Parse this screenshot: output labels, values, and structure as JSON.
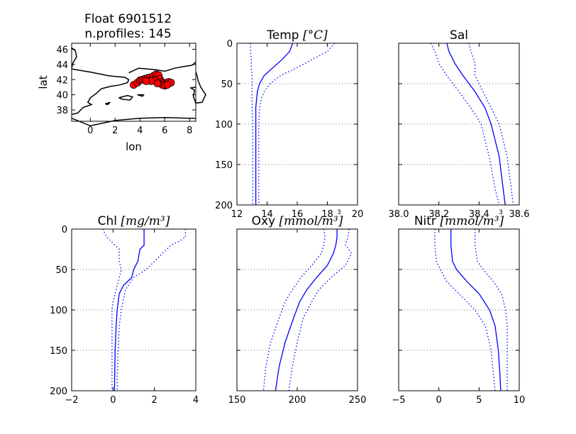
{
  "chart_data": [
    {
      "type": "scatter",
      "title_line1": "Float 6901512",
      "title_line2": "n.profiles: 145",
      "xlabel": "lon",
      "ylabel": "lat",
      "xlim": [
        -1.5,
        8.5
      ],
      "ylim": [
        36.5,
        46.8
      ],
      "xticks": [
        0,
        2,
        4,
        6,
        8
      ],
      "yticks": [
        38,
        40,
        42,
        44,
        46
      ],
      "marker_color": "#ff0000",
      "coast_color": "#000000",
      "points": [
        {
          "x": 3.5,
          "y": 41.3
        },
        {
          "x": 3.8,
          "y": 41.6
        },
        {
          "x": 4.0,
          "y": 41.9
        },
        {
          "x": 4.2,
          "y": 42.0
        },
        {
          "x": 4.4,
          "y": 42.1
        },
        {
          "x": 4.6,
          "y": 42.2
        },
        {
          "x": 4.8,
          "y": 42.3
        },
        {
          "x": 5.0,
          "y": 42.2
        },
        {
          "x": 5.1,
          "y": 42.5
        },
        {
          "x": 5.3,
          "y": 42.7
        },
        {
          "x": 5.5,
          "y": 42.6
        },
        {
          "x": 5.6,
          "y": 42.1
        },
        {
          "x": 5.2,
          "y": 41.9
        },
        {
          "x": 5.7,
          "y": 41.7
        },
        {
          "x": 5.9,
          "y": 41.6
        },
        {
          "x": 6.1,
          "y": 41.5
        },
        {
          "x": 6.3,
          "y": 41.7
        },
        {
          "x": 6.5,
          "y": 41.6
        },
        {
          "x": 5.8,
          "y": 41.3
        },
        {
          "x": 6.0,
          "y": 41.2
        },
        {
          "x": 5.4,
          "y": 41.5
        },
        {
          "x": 4.9,
          "y": 41.8
        },
        {
          "x": 4.5,
          "y": 41.8
        },
        {
          "x": 6.2,
          "y": 41.3
        }
      ]
    },
    {
      "type": "line",
      "title": "Temp",
      "title_unit": "[°C]",
      "xlim": [
        12,
        20
      ],
      "ylim": [
        200,
        0
      ],
      "xticks": [
        12,
        14,
        16,
        18,
        20
      ],
      "xticklabels": [
        "12",
        "14",
        "16",
        "18",
        "20"
      ],
      "offset_text": "3",
      "yticks": [
        0,
        50,
        100,
        150,
        200
      ],
      "show_yticklabels": true,
      "grid_y": true,
      "line_color": "#0000ff",
      "series": [
        {
          "style": "solid",
          "x": [
            15.7,
            15.5,
            15.0,
            14.4,
            13.8,
            13.5,
            13.35,
            13.3,
            13.25,
            13.25,
            13.25,
            13.25
          ],
          "y": [
            0,
            10,
            20,
            30,
            40,
            50,
            60,
            70,
            80,
            100,
            150,
            200
          ]
        },
        {
          "style": "dotted",
          "x": [
            18.5,
            18.0,
            17.0,
            16.0,
            14.9,
            14.2,
            13.8,
            13.6,
            13.5,
            13.45,
            13.45,
            13.45
          ],
          "y": [
            0,
            10,
            20,
            30,
            40,
            50,
            60,
            70,
            80,
            100,
            150,
            200
          ]
        },
        {
          "style": "dotted",
          "x": [
            12.9,
            12.9,
            12.95,
            12.95,
            13.0,
            13.0,
            13.0,
            13.0,
            13.0,
            13.05,
            13.05,
            13.05
          ],
          "y": [
            0,
            10,
            20,
            30,
            40,
            50,
            60,
            70,
            80,
            100,
            150,
            200
          ]
        }
      ]
    },
    {
      "type": "line",
      "title": "Sal",
      "title_unit": "",
      "xlim": [
        38.0,
        38.6
      ],
      "ylim": [
        200,
        0
      ],
      "xticks": [
        38.0,
        38.2,
        38.4,
        38.6
      ],
      "xticklabels": [
        "38.0",
        "38.2",
        "38.4",
        "38.6"
      ],
      "offset_text": "3",
      "yticks": [
        0,
        50,
        100,
        150,
        200
      ],
      "show_yticklabels": false,
      "grid_y": true,
      "line_color": "#0000ff",
      "series": [
        {
          "style": "solid",
          "x": [
            38.24,
            38.25,
            38.28,
            38.32,
            38.38,
            38.43,
            38.46,
            38.5,
            38.52,
            38.53
          ],
          "y": [
            0,
            10,
            25,
            40,
            60,
            80,
            100,
            140,
            180,
            200
          ]
        },
        {
          "style": "dotted",
          "x": [
            38.16,
            38.18,
            38.2,
            38.24,
            38.3,
            38.36,
            38.41,
            38.45,
            38.48,
            38.5
          ],
          "y": [
            0,
            10,
            25,
            40,
            60,
            80,
            100,
            140,
            180,
            200
          ]
        },
        {
          "style": "dotted",
          "x": [
            38.35,
            38.36,
            38.38,
            38.38,
            38.42,
            38.46,
            38.5,
            38.54,
            38.56,
            38.57
          ],
          "y": [
            0,
            10,
            25,
            40,
            60,
            80,
            100,
            140,
            180,
            200
          ]
        }
      ]
    },
    {
      "type": "line",
      "title": "Chl",
      "title_unit": "[mg/m³]",
      "xlim": [
        -2,
        4
      ],
      "ylim": [
        200,
        0
      ],
      "xticks": [
        -2,
        0,
        2,
        4
      ],
      "xticklabels": [
        "−2",
        "0",
        "2",
        "4"
      ],
      "offset_text": "",
      "yticks": [
        0,
        50,
        100,
        150,
        200
      ],
      "show_yticklabels": true,
      "grid_y": true,
      "line_color": "#0000ff",
      "series": [
        {
          "style": "solid",
          "x": [
            1.5,
            1.5,
            1.5,
            1.3,
            1.2,
            1.0,
            0.9,
            0.5,
            0.3,
            0.2,
            0.15,
            0.1,
            0.08,
            0.07
          ],
          "y": [
            0,
            10,
            20,
            25,
            40,
            50,
            60,
            70,
            80,
            100,
            120,
            150,
            180,
            200
          ]
        },
        {
          "style": "dotted",
          "x": [
            3.5,
            3.5,
            3.2,
            2.8,
            2.4,
            2.0,
            1.6,
            1.0,
            0.6,
            0.4,
            0.3,
            0.25,
            0.2,
            0.2
          ],
          "y": [
            0,
            10,
            15,
            20,
            30,
            40,
            50,
            60,
            75,
            100,
            120,
            150,
            180,
            200
          ]
        },
        {
          "style": "dotted",
          "x": [
            -0.5,
            -0.3,
            0.3,
            0.3,
            0.4,
            0.3,
            0.2,
            0.1,
            0.0,
            -0.05,
            -0.05,
            -0.05,
            -0.05,
            -0.05
          ],
          "y": [
            0,
            10,
            25,
            40,
            50,
            60,
            70,
            80,
            90,
            100,
            120,
            150,
            180,
            200
          ]
        }
      ]
    },
    {
      "type": "line",
      "title": "Oxy",
      "title_unit": "[mmol/m³]",
      "xlim": [
        150,
        250
      ],
      "ylim": [
        200,
        0
      ],
      "xticks": [
        150,
        200,
        250
      ],
      "xticklabels": [
        "150",
        "200",
        "250"
      ],
      "offset_text": "",
      "yticks": [
        0,
        50,
        100,
        150,
        200
      ],
      "show_yticklabels": false,
      "grid_y": true,
      "line_color": "#0000ff",
      "series": [
        {
          "style": "solid",
          "x": [
            233,
            233,
            232,
            230,
            225,
            216,
            208,
            202,
            197,
            190,
            185,
            182
          ],
          "y": [
            0,
            10,
            20,
            30,
            45,
            60,
            75,
            90,
            110,
            140,
            170,
            200
          ]
        },
        {
          "style": "dotted",
          "x": [
            243,
            242,
            240,
            245,
            240,
            228,
            218,
            212,
            205,
            200,
            196,
            193
          ],
          "y": [
            0,
            10,
            20,
            30,
            45,
            60,
            75,
            90,
            110,
            140,
            170,
            200
          ]
        },
        {
          "style": "dotted",
          "x": [
            222,
            223,
            222,
            220,
            212,
            203,
            196,
            190,
            185,
            178,
            174,
            172
          ],
          "y": [
            0,
            10,
            20,
            30,
            45,
            60,
            75,
            90,
            110,
            140,
            170,
            200
          ]
        }
      ]
    },
    {
      "type": "line",
      "title": "Nitr",
      "title_unit": "[mmol/m³]",
      "xlim": [
        -5,
        10
      ],
      "ylim": [
        200,
        0
      ],
      "xticks": [
        -5,
        0,
        5,
        10
      ],
      "xticklabels": [
        "−5",
        "0",
        "5",
        "10"
      ],
      "offset_text": "",
      "yticks": [
        0,
        50,
        100,
        150,
        200
      ],
      "show_yticklabels": false,
      "grid_y": true,
      "line_color": "#0000ff",
      "series": [
        {
          "style": "solid",
          "x": [
            1.5,
            1.5,
            1.7,
            2.2,
            3.5,
            5.0,
            6.3,
            7.0,
            7.4,
            7.6,
            7.7
          ],
          "y": [
            0,
            20,
            40,
            50,
            65,
            80,
            100,
            120,
            150,
            180,
            200
          ]
        },
        {
          "style": "dotted",
          "x": [
            4.5,
            4.5,
            4.8,
            5.5,
            6.8,
            7.8,
            8.3,
            8.5,
            8.5,
            8.5,
            8.5
          ],
          "y": [
            0,
            20,
            40,
            50,
            65,
            80,
            100,
            120,
            150,
            180,
            200
          ]
        },
        {
          "style": "dotted",
          "x": [
            -0.5,
            -0.5,
            -0.3,
            0.2,
            1.0,
            2.5,
            4.5,
            5.8,
            6.5,
            6.8,
            7.0
          ],
          "y": [
            0,
            20,
            40,
            50,
            65,
            80,
            100,
            120,
            150,
            180,
            200
          ]
        }
      ]
    }
  ]
}
